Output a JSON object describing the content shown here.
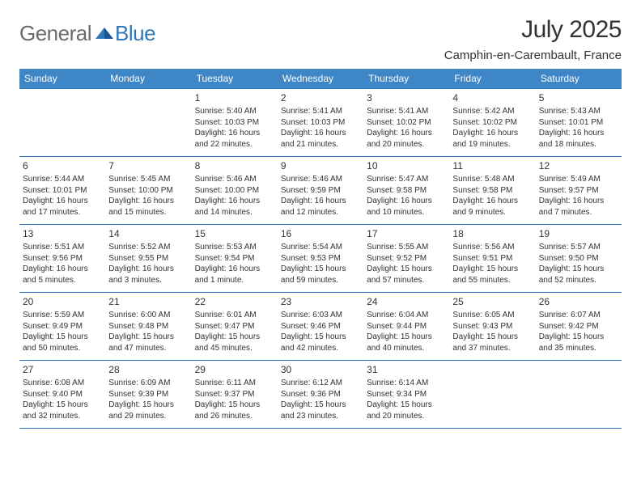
{
  "brand": {
    "left": "General",
    "right": "Blue"
  },
  "accent_color": "#3f86c6",
  "border_color": "#2f77b8",
  "title": "July 2025",
  "location": "Camphin-en-Carembault, France",
  "days_of_week": [
    "Sunday",
    "Monday",
    "Tuesday",
    "Wednesday",
    "Thursday",
    "Friday",
    "Saturday"
  ],
  "leading_blanks": 2,
  "cells": [
    {
      "n": "1",
      "sr": "Sunrise: 5:40 AM",
      "ss": "Sunset: 10:03 PM",
      "dl": "Daylight: 16 hours and 22 minutes."
    },
    {
      "n": "2",
      "sr": "Sunrise: 5:41 AM",
      "ss": "Sunset: 10:03 PM",
      "dl": "Daylight: 16 hours and 21 minutes."
    },
    {
      "n": "3",
      "sr": "Sunrise: 5:41 AM",
      "ss": "Sunset: 10:02 PM",
      "dl": "Daylight: 16 hours and 20 minutes."
    },
    {
      "n": "4",
      "sr": "Sunrise: 5:42 AM",
      "ss": "Sunset: 10:02 PM",
      "dl": "Daylight: 16 hours and 19 minutes."
    },
    {
      "n": "5",
      "sr": "Sunrise: 5:43 AM",
      "ss": "Sunset: 10:01 PM",
      "dl": "Daylight: 16 hours and 18 minutes."
    },
    {
      "n": "6",
      "sr": "Sunrise: 5:44 AM",
      "ss": "Sunset: 10:01 PM",
      "dl": "Daylight: 16 hours and 17 minutes."
    },
    {
      "n": "7",
      "sr": "Sunrise: 5:45 AM",
      "ss": "Sunset: 10:00 PM",
      "dl": "Daylight: 16 hours and 15 minutes."
    },
    {
      "n": "8",
      "sr": "Sunrise: 5:46 AM",
      "ss": "Sunset: 10:00 PM",
      "dl": "Daylight: 16 hours and 14 minutes."
    },
    {
      "n": "9",
      "sr": "Sunrise: 5:46 AM",
      "ss": "Sunset: 9:59 PM",
      "dl": "Daylight: 16 hours and 12 minutes."
    },
    {
      "n": "10",
      "sr": "Sunrise: 5:47 AM",
      "ss": "Sunset: 9:58 PM",
      "dl": "Daylight: 16 hours and 10 minutes."
    },
    {
      "n": "11",
      "sr": "Sunrise: 5:48 AM",
      "ss": "Sunset: 9:58 PM",
      "dl": "Daylight: 16 hours and 9 minutes."
    },
    {
      "n": "12",
      "sr": "Sunrise: 5:49 AM",
      "ss": "Sunset: 9:57 PM",
      "dl": "Daylight: 16 hours and 7 minutes."
    },
    {
      "n": "13",
      "sr": "Sunrise: 5:51 AM",
      "ss": "Sunset: 9:56 PM",
      "dl": "Daylight: 16 hours and 5 minutes."
    },
    {
      "n": "14",
      "sr": "Sunrise: 5:52 AM",
      "ss": "Sunset: 9:55 PM",
      "dl": "Daylight: 16 hours and 3 minutes."
    },
    {
      "n": "15",
      "sr": "Sunrise: 5:53 AM",
      "ss": "Sunset: 9:54 PM",
      "dl": "Daylight: 16 hours and 1 minute."
    },
    {
      "n": "16",
      "sr": "Sunrise: 5:54 AM",
      "ss": "Sunset: 9:53 PM",
      "dl": "Daylight: 15 hours and 59 minutes."
    },
    {
      "n": "17",
      "sr": "Sunrise: 5:55 AM",
      "ss": "Sunset: 9:52 PM",
      "dl": "Daylight: 15 hours and 57 minutes."
    },
    {
      "n": "18",
      "sr": "Sunrise: 5:56 AM",
      "ss": "Sunset: 9:51 PM",
      "dl": "Daylight: 15 hours and 55 minutes."
    },
    {
      "n": "19",
      "sr": "Sunrise: 5:57 AM",
      "ss": "Sunset: 9:50 PM",
      "dl": "Daylight: 15 hours and 52 minutes."
    },
    {
      "n": "20",
      "sr": "Sunrise: 5:59 AM",
      "ss": "Sunset: 9:49 PM",
      "dl": "Daylight: 15 hours and 50 minutes."
    },
    {
      "n": "21",
      "sr": "Sunrise: 6:00 AM",
      "ss": "Sunset: 9:48 PM",
      "dl": "Daylight: 15 hours and 47 minutes."
    },
    {
      "n": "22",
      "sr": "Sunrise: 6:01 AM",
      "ss": "Sunset: 9:47 PM",
      "dl": "Daylight: 15 hours and 45 minutes."
    },
    {
      "n": "23",
      "sr": "Sunrise: 6:03 AM",
      "ss": "Sunset: 9:46 PM",
      "dl": "Daylight: 15 hours and 42 minutes."
    },
    {
      "n": "24",
      "sr": "Sunrise: 6:04 AM",
      "ss": "Sunset: 9:44 PM",
      "dl": "Daylight: 15 hours and 40 minutes."
    },
    {
      "n": "25",
      "sr": "Sunrise: 6:05 AM",
      "ss": "Sunset: 9:43 PM",
      "dl": "Daylight: 15 hours and 37 minutes."
    },
    {
      "n": "26",
      "sr": "Sunrise: 6:07 AM",
      "ss": "Sunset: 9:42 PM",
      "dl": "Daylight: 15 hours and 35 minutes."
    },
    {
      "n": "27",
      "sr": "Sunrise: 6:08 AM",
      "ss": "Sunset: 9:40 PM",
      "dl": "Daylight: 15 hours and 32 minutes."
    },
    {
      "n": "28",
      "sr": "Sunrise: 6:09 AM",
      "ss": "Sunset: 9:39 PM",
      "dl": "Daylight: 15 hours and 29 minutes."
    },
    {
      "n": "29",
      "sr": "Sunrise: 6:11 AM",
      "ss": "Sunset: 9:37 PM",
      "dl": "Daylight: 15 hours and 26 minutes."
    },
    {
      "n": "30",
      "sr": "Sunrise: 6:12 AM",
      "ss": "Sunset: 9:36 PM",
      "dl": "Daylight: 15 hours and 23 minutes."
    },
    {
      "n": "31",
      "sr": "Sunrise: 6:14 AM",
      "ss": "Sunset: 9:34 PM",
      "dl": "Daylight: 15 hours and 20 minutes."
    }
  ]
}
